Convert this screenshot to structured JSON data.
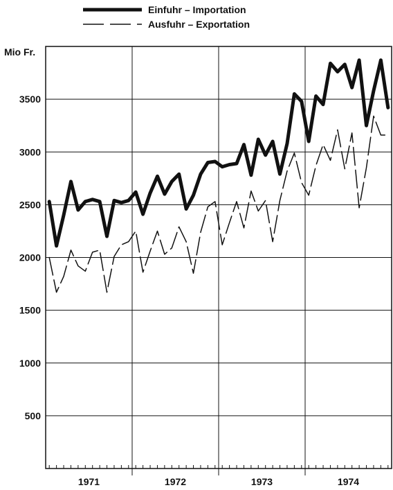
{
  "legend": {
    "import_label": "Einfuhr – Importation",
    "export_label": "Ausfuhr – Exportation"
  },
  "chart_data": {
    "type": "line",
    "ylabel": "Mio Fr.",
    "ylim": [
      0,
      4000
    ],
    "yticks": [
      500,
      1000,
      1500,
      2000,
      2500,
      3000,
      3500
    ],
    "xticks": [
      "1971",
      "1972",
      "1973",
      "1974"
    ],
    "x_range": [
      "1971-01",
      "1974-12"
    ],
    "grid": true,
    "legend_position": "top-center",
    "x": [
      "1971-01",
      "1971-02",
      "1971-03",
      "1971-04",
      "1971-05",
      "1971-06",
      "1971-07",
      "1971-08",
      "1971-09",
      "1971-10",
      "1971-11",
      "1971-12",
      "1972-01",
      "1972-02",
      "1972-03",
      "1972-04",
      "1972-05",
      "1972-06",
      "1972-07",
      "1972-08",
      "1972-09",
      "1972-10",
      "1972-11",
      "1972-12",
      "1973-01",
      "1973-02",
      "1973-03",
      "1973-04",
      "1973-05",
      "1973-06",
      "1973-07",
      "1973-08",
      "1973-09",
      "1973-10",
      "1973-11",
      "1973-12",
      "1974-01",
      "1974-02",
      "1974-03",
      "1974-04",
      "1974-05",
      "1974-06",
      "1974-07",
      "1974-08",
      "1974-09",
      "1974-10",
      "1974-11",
      "1974-12"
    ],
    "series": [
      {
        "name": "Einfuhr – Importation",
        "style": "thick-solid",
        "color": "#111111",
        "values": [
          2530,
          2110,
          2400,
          2720,
          2450,
          2530,
          2550,
          2530,
          2200,
          2540,
          2520,
          2540,
          2620,
          2410,
          2610,
          2770,
          2600,
          2720,
          2790,
          2460,
          2590,
          2790,
          2900,
          2910,
          2860,
          2880,
          2890,
          3070,
          2780,
          3120,
          2970,
          3100,
          2790,
          3080,
          3550,
          3480,
          3100,
          3530,
          3450,
          3840,
          3760,
          3830,
          3610,
          3870,
          3250,
          3580,
          3870,
          3420
        ]
      },
      {
        "name": "Ausfuhr – Exportation",
        "style": "thin-dashed",
        "color": "#111111",
        "values": [
          2000,
          1670,
          1820,
          2070,
          1920,
          1870,
          2050,
          2070,
          1670,
          2010,
          2120,
          2150,
          2250,
          1860,
          2060,
          2250,
          2030,
          2090,
          2290,
          2150,
          1850,
          2240,
          2480,
          2530,
          2120,
          2330,
          2530,
          2280,
          2630,
          2440,
          2540,
          2150,
          2540,
          2820,
          2990,
          2710,
          2590,
          2870,
          3070,
          2920,
          3210,
          2840,
          3180,
          2470,
          2850,
          3340,
          3160,
          3160
        ]
      }
    ]
  }
}
